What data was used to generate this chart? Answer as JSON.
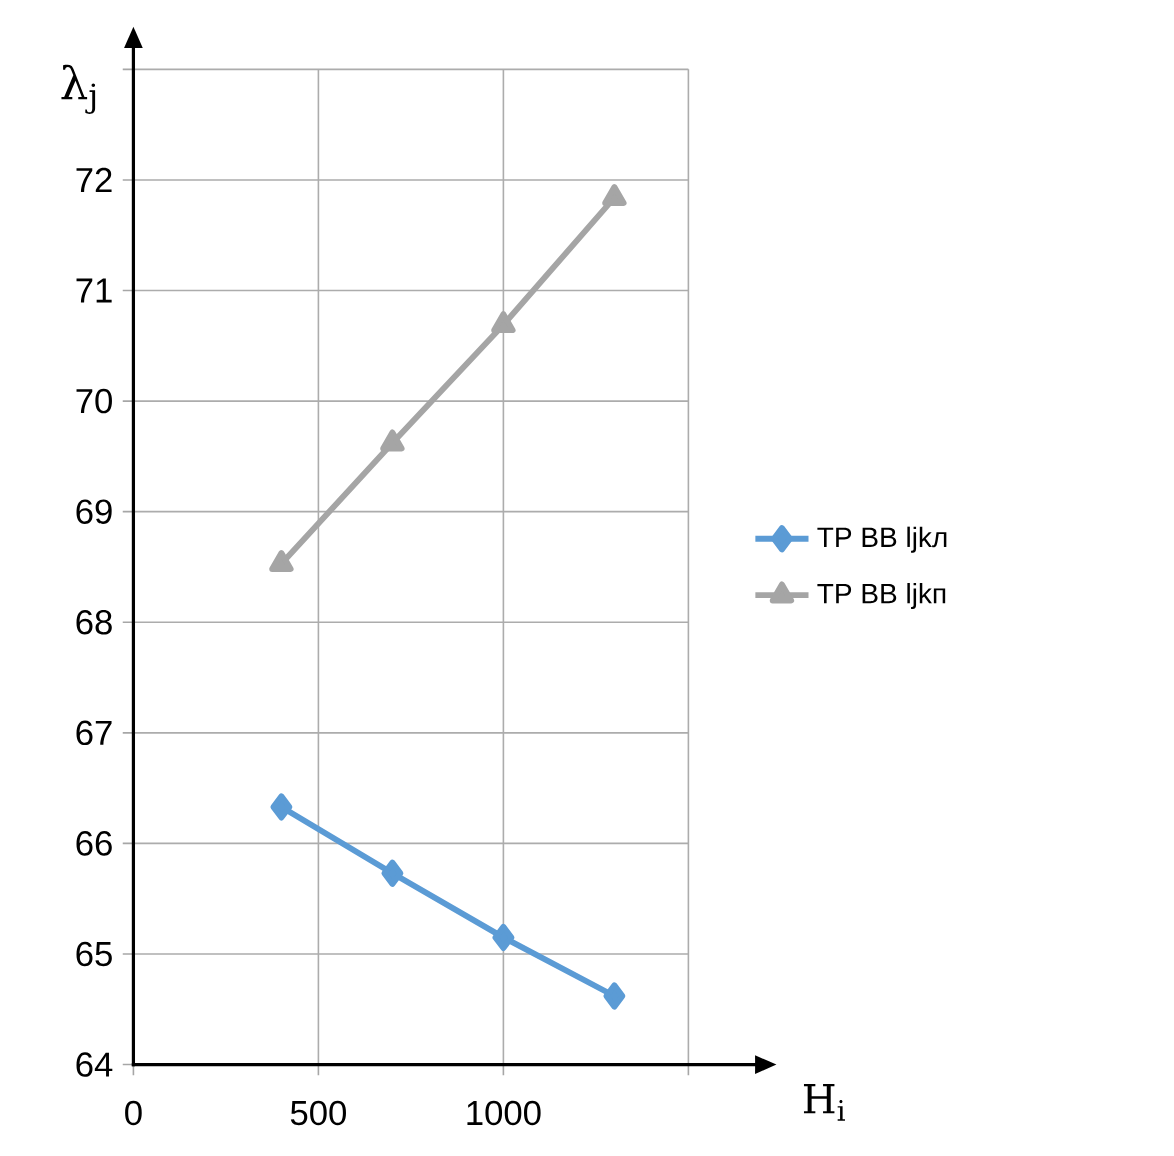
{
  "chart_data": {
    "type": "line",
    "xlabel": "H$_{i}$",
    "ylabel": "λ$_{j}$",
    "x": [
      400,
      700,
      1000,
      1300
    ],
    "series": [
      {
        "name": "TP BB ljkл",
        "color": "#5b9bd5",
        "marker": "diamond",
        "values": [
          66.33,
          65.73,
          65.15,
          64.62
        ]
      },
      {
        "name": "TP BB ljkп",
        "color": "#a5a5a5",
        "marker": "triangle",
        "values": [
          68.53,
          69.62,
          70.69,
          71.84
        ]
      }
    ],
    "xlim": [
      0,
      1500
    ],
    "xticks": [
      0,
      500,
      1000,
      {
        "value": 1500,
        "label": null
      }
    ],
    "ylim": [
      64,
      73
    ],
    "yticks": [
      64,
      65,
      66,
      67,
      68,
      69,
      70,
      71,
      72,
      {
        "value": 73,
        "label": null
      }
    ],
    "grid": true,
    "legend": "right",
    "line_style": "solid"
  }
}
